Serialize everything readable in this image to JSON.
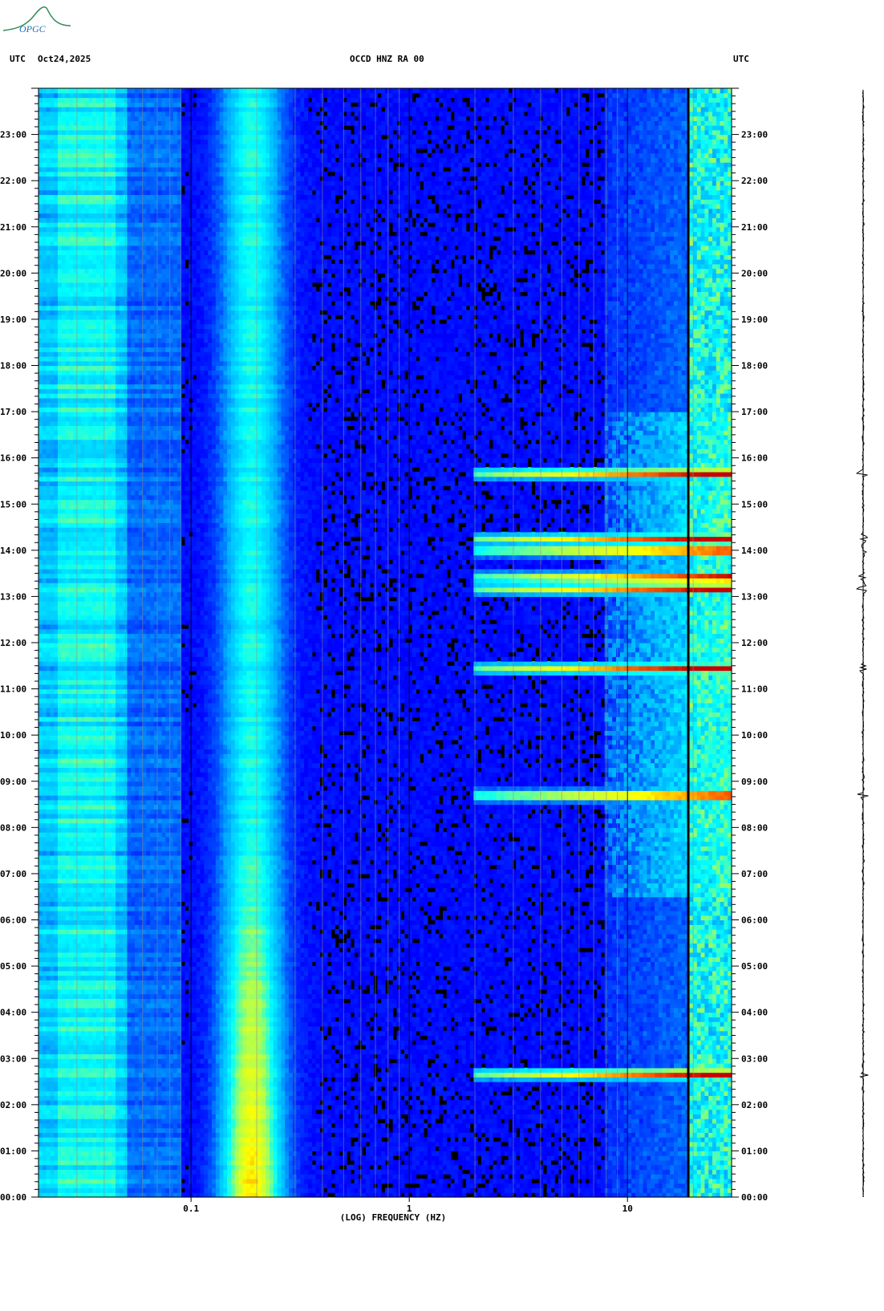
{
  "header": {
    "utc_left": "UTC",
    "date": "Oct24,2025",
    "station": "OCCD HNZ RA 00",
    "utc_right": "UTC"
  },
  "logo": {
    "text": "OPGC"
  },
  "chart_data": {
    "type": "heatmap",
    "title": "OCCD HNZ RA 00",
    "xlabel": "(LOG) FREQUENCY (HZ)",
    "ylabel": "",
    "x_scale": "log",
    "xlim": [
      0.02,
      30
    ],
    "x_ticks": [
      {
        "value": 0.1,
        "label": "0.1"
      },
      {
        "value": 1,
        "label": "1"
      },
      {
        "value": 10,
        "label": "10"
      }
    ],
    "ylim": [
      "00:00",
      "24:00"
    ],
    "y_ticks": [
      "00:00",
      "01:00",
      "02:00",
      "03:00",
      "04:00",
      "05:00",
      "06:00",
      "07:00",
      "08:00",
      "09:00",
      "10:00",
      "11:00",
      "12:00",
      "13:00",
      "14:00",
      "15:00",
      "16:00",
      "17:00",
      "18:00",
      "19:00",
      "20:00",
      "21:00",
      "22:00",
      "23:00"
    ],
    "colormap": [
      "#00008c",
      "#0000ff",
      "#00aaff",
      "#00ffff",
      "#aaff55",
      "#ffff00",
      "#ff6600",
      "#c80000"
    ],
    "persistent_bands_hz": [
      0.03,
      0.045,
      0.18,
      0.25,
      20,
      22,
      26
    ],
    "strong_line_hz": 19,
    "event_times_utc": [
      "02:40",
      "08:42",
      "11:27",
      "13:10",
      "13:25",
      "14:00",
      "14:15",
      "15:40"
    ]
  }
}
